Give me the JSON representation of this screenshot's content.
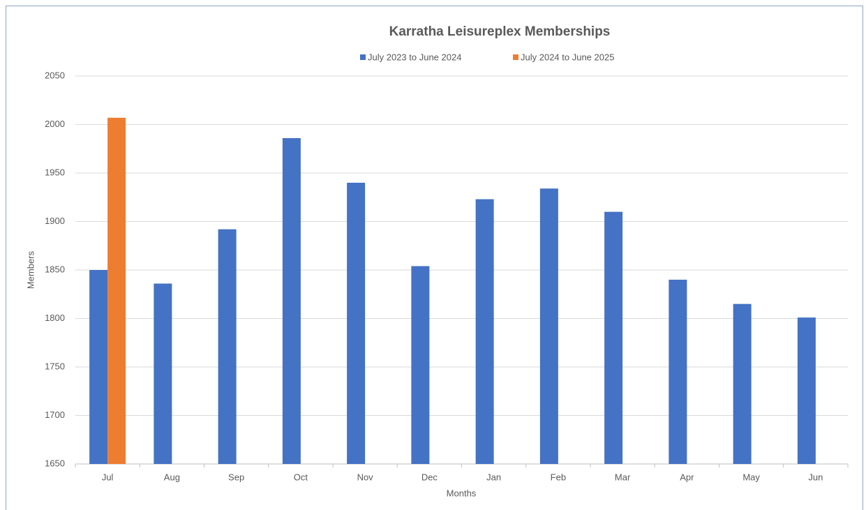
{
  "chart_data": {
    "type": "bar",
    "title": "Karratha Leisureplex Memberships",
    "categories": [
      "Jul",
      "Aug",
      "Sep",
      "Oct",
      "Nov",
      "Dec",
      "Jan",
      "Feb",
      "Mar",
      "Apr",
      "May",
      "Jun"
    ],
    "series": [
      {
        "name": "July 2023 to June 2024",
        "color": "#4472c4",
        "values": [
          1850,
          1836,
          1892,
          1986,
          1940,
          1854,
          1923,
          1934,
          1910,
          1840,
          1815,
          1801
        ]
      },
      {
        "name": "July 2024 to June 2025",
        "color": "#ed7d31",
        "values": [
          2007,
          null,
          null,
          null,
          null,
          null,
          null,
          null,
          null,
          null,
          null,
          null
        ]
      }
    ],
    "x_label": "Months",
    "y_label": "Members",
    "ylim": [
      1650,
      2050
    ],
    "yticks": [
      1650,
      1700,
      1750,
      1800,
      1850,
      1900,
      1950,
      2000,
      2050
    ],
    "grid": true,
    "legend": "top"
  }
}
